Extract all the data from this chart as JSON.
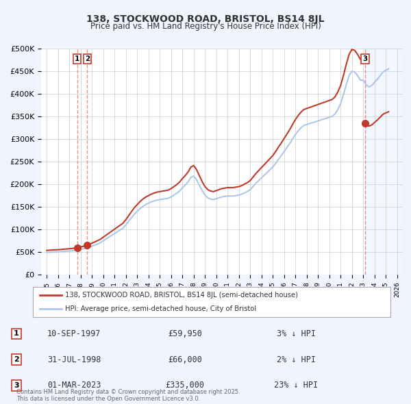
{
  "title": "138, STOCKWOOD ROAD, BRISTOL, BS14 8JL",
  "subtitle": "Price paid vs. HM Land Registry's House Price Index (HPI)",
  "hpi_label": "HPI: Average price, semi-detached house, City of Bristol",
  "address_label": "138, STOCKWOOD ROAD, BRISTOL, BS14 8JL (semi-detached house)",
  "xlim": [
    1994.5,
    2026.5
  ],
  "ylim": [
    0,
    500000
  ],
  "yticks": [
    0,
    50000,
    100000,
    150000,
    200000,
    250000,
    300000,
    350000,
    400000,
    450000,
    500000
  ],
  "ytick_labels": [
    "£0",
    "£50K",
    "£100K",
    "£150K",
    "£200K",
    "£250K",
    "£300K",
    "£350K",
    "£400K",
    "£450K",
    "£500K"
  ],
  "xticks": [
    1995,
    1996,
    1997,
    1998,
    1999,
    2000,
    2001,
    2002,
    2003,
    2004,
    2005,
    2006,
    2007,
    2008,
    2009,
    2010,
    2011,
    2012,
    2013,
    2014,
    2015,
    2016,
    2017,
    2018,
    2019,
    2020,
    2021,
    2022,
    2023,
    2024,
    2025,
    2026
  ],
  "hpi_color": "#aec6e8",
  "price_color": "#c0392b",
  "dashed_color": "#e87070",
  "background_color": "#f0f4ff",
  "plot_bg_color": "#ffffff",
  "grid_color": "#cccccc",
  "purchases": [
    {
      "label": 1,
      "date": 1997.69,
      "price": 59950,
      "pct": "3%",
      "date_str": "10-SEP-1997",
      "price_str": "£59,950"
    },
    {
      "label": 2,
      "date": 1998.58,
      "price": 66000,
      "pct": "2%",
      "date_str": "31-JUL-1998",
      "price_str": "£66,000"
    },
    {
      "label": 3,
      "date": 2023.17,
      "price": 335000,
      "pct": "23%",
      "date_str": "01-MAR-2023",
      "price_str": "£335,000"
    }
  ],
  "hpi_data_x": [
    1995.0,
    1995.25,
    1995.5,
    1995.75,
    1996.0,
    1996.25,
    1996.5,
    1996.75,
    1997.0,
    1997.25,
    1997.5,
    1997.75,
    1998.0,
    1998.25,
    1998.5,
    1998.75,
    1999.0,
    1999.25,
    1999.5,
    1999.75,
    2000.0,
    2000.25,
    2000.5,
    2000.75,
    2001.0,
    2001.25,
    2001.5,
    2001.75,
    2002.0,
    2002.25,
    2002.5,
    2002.75,
    2003.0,
    2003.25,
    2003.5,
    2003.75,
    2004.0,
    2004.25,
    2004.5,
    2004.75,
    2005.0,
    2005.25,
    2005.5,
    2005.75,
    2006.0,
    2006.25,
    2006.5,
    2006.75,
    2007.0,
    2007.25,
    2007.5,
    2007.75,
    2008.0,
    2008.25,
    2008.5,
    2008.75,
    2009.0,
    2009.25,
    2009.5,
    2009.75,
    2010.0,
    2010.25,
    2010.5,
    2010.75,
    2011.0,
    2011.25,
    2011.5,
    2011.75,
    2012.0,
    2012.25,
    2012.5,
    2012.75,
    2013.0,
    2013.25,
    2013.5,
    2013.75,
    2014.0,
    2014.25,
    2014.5,
    2014.75,
    2015.0,
    2015.25,
    2015.5,
    2015.75,
    2016.0,
    2016.25,
    2016.5,
    2016.75,
    2017.0,
    2017.25,
    2017.5,
    2017.75,
    2018.0,
    2018.25,
    2018.5,
    2018.75,
    2019.0,
    2019.25,
    2019.5,
    2019.75,
    2020.0,
    2020.25,
    2020.5,
    2020.75,
    2021.0,
    2021.25,
    2021.5,
    2021.75,
    2022.0,
    2022.25,
    2022.5,
    2022.75,
    2023.0,
    2023.25,
    2023.5,
    2023.75,
    2024.0,
    2024.25,
    2024.5,
    2024.75,
    2025.0,
    2025.25
  ],
  "hpi_data_y": [
    49000,
    49500,
    50000,
    50200,
    50500,
    51000,
    51500,
    52000,
    52500,
    53000,
    54000,
    55000,
    56000,
    57500,
    59000,
    61000,
    63000,
    65500,
    68000,
    71000,
    75000,
    79000,
    83000,
    87000,
    91000,
    95000,
    99000,
    103000,
    110000,
    118000,
    126000,
    134000,
    140000,
    146000,
    151000,
    155000,
    158000,
    161000,
    163000,
    165000,
    166000,
    167000,
    168000,
    169000,
    172000,
    176000,
    180000,
    185000,
    192000,
    198000,
    205000,
    215000,
    218000,
    210000,
    198000,
    186000,
    176000,
    170000,
    167000,
    166000,
    168000,
    170000,
    172000,
    173000,
    174000,
    174000,
    174000,
    175000,
    176000,
    178000,
    181000,
    184000,
    188000,
    195000,
    202000,
    208000,
    214000,
    220000,
    226000,
    232000,
    238000,
    246000,
    255000,
    263000,
    272000,
    281000,
    290000,
    300000,
    310000,
    318000,
    325000,
    330000,
    332000,
    334000,
    336000,
    338000,
    340000,
    342000,
    344000,
    346000,
    348000,
    350000,
    355000,
    365000,
    378000,
    398000,
    420000,
    440000,
    450000,
    448000,
    440000,
    430000,
    430000,
    420000,
    415000,
    418000,
    425000,
    432000,
    440000,
    448000,
    452000,
    455000
  ],
  "footnote": "Contains HM Land Registry data © Crown copyright and database right 2025.\nThis data is licensed under the Open Government Licence v3.0."
}
